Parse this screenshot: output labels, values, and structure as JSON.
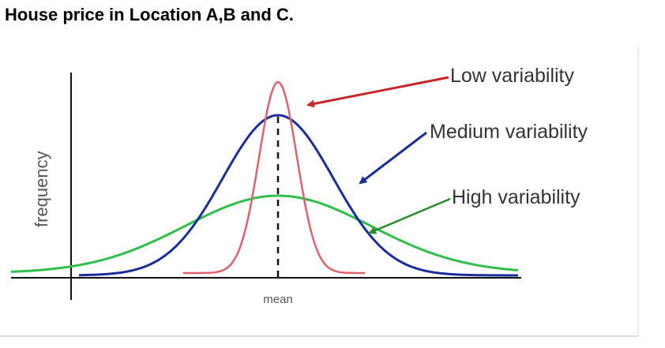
{
  "title": "House price in Location A,B and C.",
  "figure": {
    "y_axis_label": "frequency",
    "x_axis_label": "mean",
    "curves": [
      {
        "label": "Low variability",
        "color": "#e0626a",
        "arrow_color": "#c62828"
      },
      {
        "label": "Medium variability",
        "color": "#1a2d9c",
        "arrow_color": "#1a2d9c"
      },
      {
        "label": "High variability",
        "color": "#2fbf4a",
        "arrow_color": "#2e8b2e"
      }
    ]
  }
}
